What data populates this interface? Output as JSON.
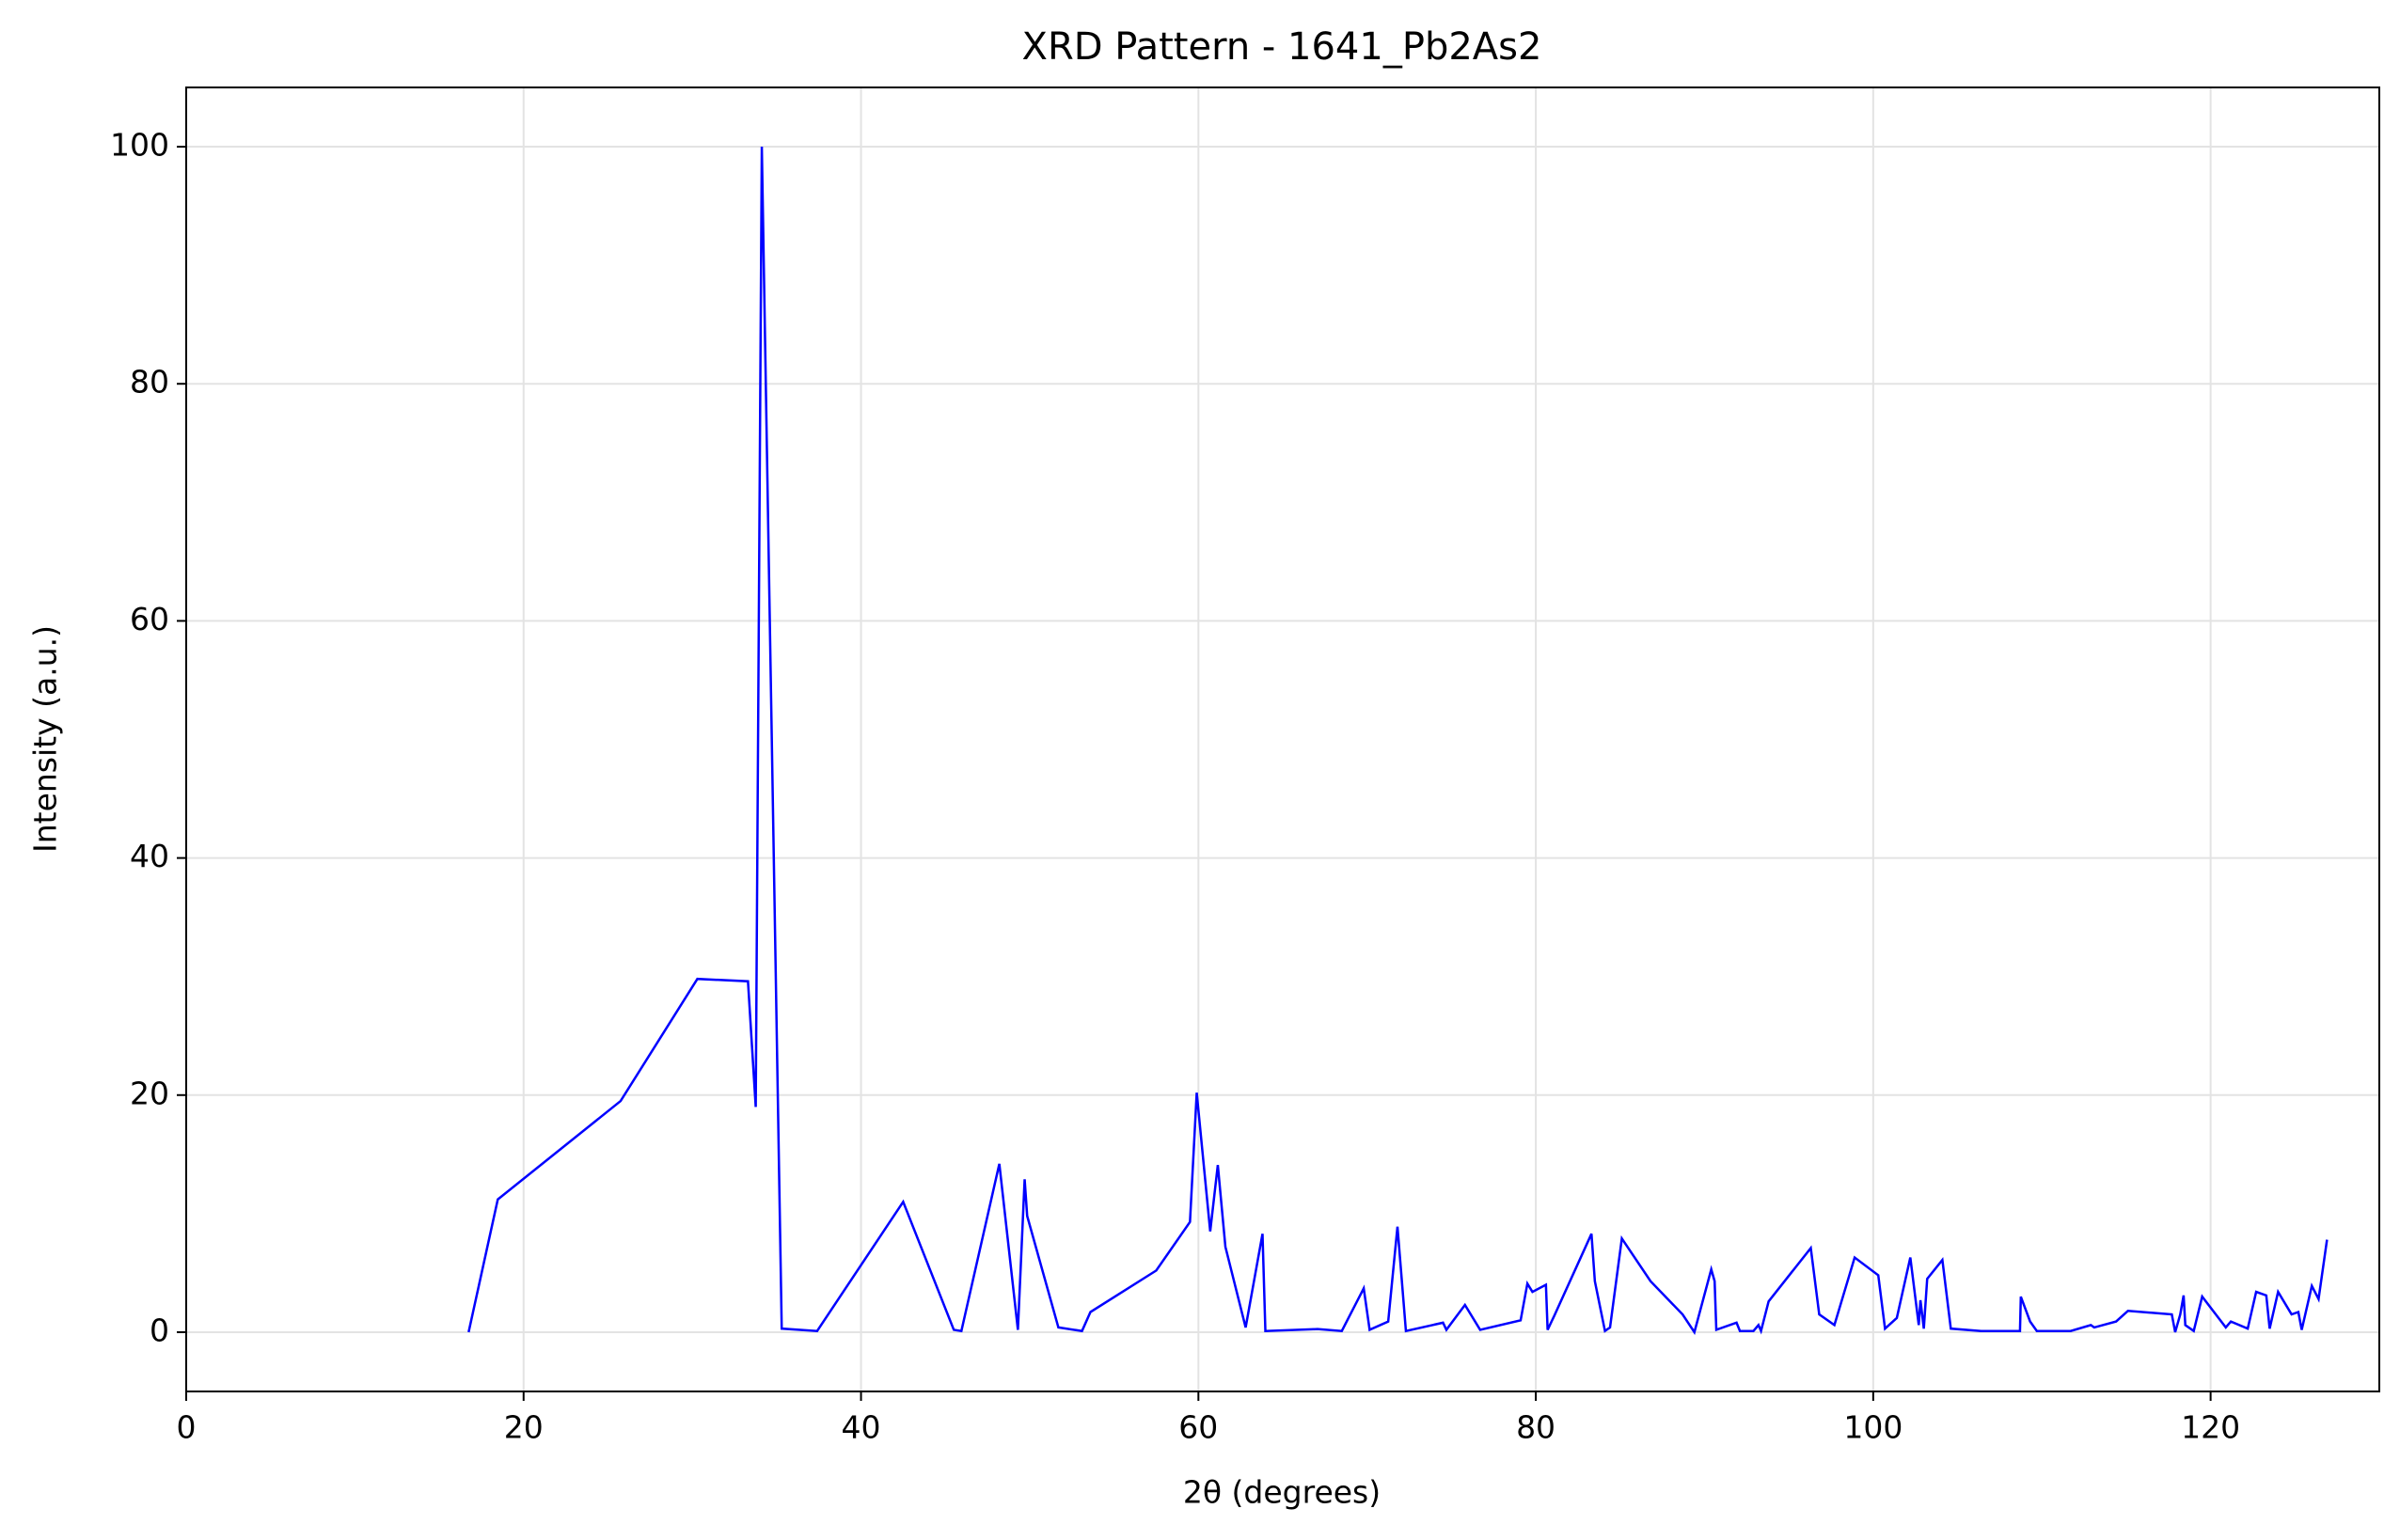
{
  "chart_data": {
    "type": "line",
    "title": "XRD Pattern - 1641_Pb2As2",
    "xlabel": "2θ (degrees)",
    "ylabel": "Intensity (a.u.)",
    "color": "#0000ff",
    "grid": true,
    "xlim": [
      0,
      130
    ],
    "ylim": [
      -5,
      105
    ],
    "xticks": [
      0,
      20,
      40,
      60,
      80,
      100,
      120
    ],
    "yticks": [
      0,
      20,
      40,
      60,
      80,
      100
    ],
    "x": [
      16.74,
      18.47,
      25.75,
      30.3,
      33.3,
      33.76,
      34.12,
      35.3,
      37.4,
      42.5,
      45.5,
      45.95,
      48.2,
      49.3,
      49.7,
      49.85,
      51.7,
      53.1,
      53.6,
      57.5,
      59.5,
      59.9,
      60.7,
      61.15,
      61.6,
      62.8,
      63.8,
      63.97,
      67.06,
      68.5,
      69.8,
      70.15,
      71.25,
      71.8,
      72.3,
      74.5,
      74.7,
      75.8,
      76.7,
      79.1,
      79.5,
      79.8,
      80.6,
      80.7,
      81.1,
      83.3,
      83.5,
      84.1,
      84.4,
      85.1,
      86.8,
      88.7,
      89.4,
      90.4,
      90.6,
      90.7,
      91.9,
      92.1,
      92.9,
      93.2,
      93.35,
      93.8,
      96.3,
      96.8,
      97.7,
      98.9,
      100.3,
      100.7,
      101.4,
      102.2,
      102.7,
      102.8,
      103.0,
      103.2,
      104.1,
      104.6,
      106.4,
      108.7,
      108.75,
      109.3,
      109.7,
      111.7,
      112.9,
      113.1,
      114.4,
      115.1,
      117.7,
      117.9,
      118.2,
      118.4,
      118.5,
      119.0,
      119.5,
      120.9,
      121.2,
      122.2,
      122.7,
      123.3,
      123.5,
      124.0,
      124.8,
      125.2,
      125.4,
      126.0,
      126.4,
      126.9
    ],
    "values": [
      0,
      11.2,
      19.5,
      29.8,
      29.6,
      19.0,
      100,
      0.3,
      0.1,
      11.0,
      0.2,
      0.1,
      14.2,
      0.2,
      12.9,
      9.8,
      0.4,
      0.1,
      1.7,
      5.2,
      9.3,
      20.2,
      8.5,
      14.1,
      7.2,
      0.4,
      8.3,
      0.1,
      0.26,
      0.1,
      3.7,
      0.2,
      0.9,
      8.9,
      0.1,
      0.8,
      0.2,
      2.3,
      0.2,
      1.0,
      4.1,
      3.4,
      4.0,
      0.2,
      1.4,
      8.3,
      4.3,
      0.1,
      0.4,
      7.9,
      4.3,
      1.5,
      0,
      5.3,
      4.3,
      0.2,
      0.8,
      0.1,
      0.1,
      0.6,
      0.1,
      2.6,
      7.1,
      1.5,
      0.6,
      6.3,
      4.8,
      0.3,
      1.2,
      6.3,
      0.6,
      2.7,
      0.3,
      4.5,
      6.1,
      0.3,
      0.1,
      0.1,
      3.0,
      0.9,
      0.1,
      0.1,
      0.6,
      0.4,
      0.9,
      1.8,
      1.5,
      0,
      1.5,
      3.1,
      0.6,
      0.1,
      3.0,
      0.4,
      0.9,
      0.3,
      3.4,
      3.1,
      0.3,
      3.4,
      1.5,
      1.7,
      0.2,
      3.9,
      2.8,
      7.8
    ]
  }
}
